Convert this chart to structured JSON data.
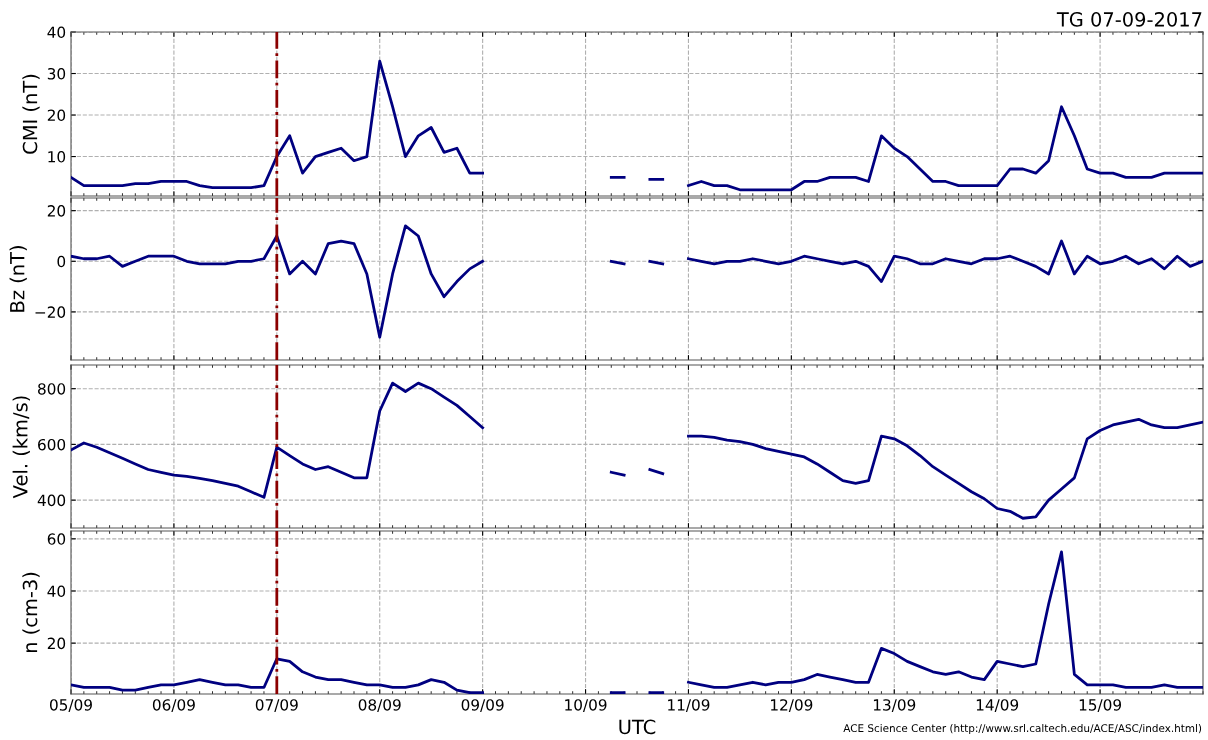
{
  "chart_data": [
    {
      "type": "line",
      "title": "TG 07-09-2017",
      "ylabel": "CMI (nT)",
      "tick_labels": "y",
      "grid": true,
      "legend": false,
      "x": [
        "2017-09-05T00:00",
        "2017-09-05T03:00",
        "2017-09-05T06:00",
        "2017-09-05T09:00",
        "2017-09-05T12:00",
        "2017-09-05T15:00",
        "2017-09-05T18:00",
        "2017-09-05T21:00",
        "2017-09-06T00:00",
        "2017-09-06T03:00",
        "2017-09-06T06:00",
        "2017-09-06T09:00",
        "2017-09-06T12:00",
        "2017-09-06T15:00",
        "2017-09-06T18:00",
        "2017-09-06T21:00",
        "2017-09-07T00:00",
        "2017-09-07T03:00",
        "2017-09-07T06:00",
        "2017-09-07T09:00",
        "2017-09-07T12:00",
        "2017-09-07T15:00",
        "2017-09-07T18:00",
        "2017-09-07T21:00",
        "2017-09-08T00:00",
        "2017-09-08T03:00",
        "2017-09-08T06:00",
        "2017-09-08T09:00",
        "2017-09-08T12:00",
        "2017-09-08T15:00",
        "2017-09-08T18:00",
        "2017-09-08T21:00",
        "2017-09-09T00:00",
        "2017-09-09T03:00",
        "2017-09-09T06:00",
        "2017-09-09T09:00",
        "2017-09-09T12:00",
        "2017-09-09T15:00",
        "2017-09-09T18:00",
        "2017-09-09T21:00",
        "2017-09-10T00:00",
        "2017-09-10T03:00",
        "2017-09-10T06:00",
        "2017-09-10T09:00",
        "2017-09-10T12:00",
        "2017-09-10T15:00",
        "2017-09-10T18:00",
        "2017-09-10T21:00",
        "2017-09-11T00:00",
        "2017-09-11T03:00",
        "2017-09-11T06:00",
        "2017-09-11T09:00",
        "2017-09-11T12:00",
        "2017-09-11T15:00",
        "2017-09-11T18:00",
        "2017-09-11T21:00",
        "2017-09-12T00:00",
        "2017-09-12T03:00",
        "2017-09-12T06:00",
        "2017-09-12T09:00",
        "2017-09-12T12:00",
        "2017-09-12T15:00",
        "2017-09-12T18:00",
        "2017-09-12T21:00",
        "2017-09-13T00:00",
        "2017-09-13T03:00",
        "2017-09-13T06:00",
        "2017-09-13T09:00",
        "2017-09-13T12:00",
        "2017-09-13T15:00",
        "2017-09-13T18:00",
        "2017-09-13T21:00",
        "2017-09-14T00:00",
        "2017-09-14T03:00",
        "2017-09-14T06:00",
        "2017-09-14T09:00",
        "2017-09-14T12:00",
        "2017-09-14T15:00",
        "2017-09-14T18:00",
        "2017-09-14T21:00",
        "2017-09-15T00:00",
        "2017-09-15T03:00",
        "2017-09-15T06:00",
        "2017-09-15T09:00",
        "2017-09-15T12:00",
        "2017-09-15T15:00",
        "2017-09-15T18:00",
        "2017-09-15T21:00",
        "2017-09-16T00:00"
      ],
      "xlim": [
        "2017-09-05",
        "2017-09-16"
      ],
      "ylim": [
        0.5,
        40
      ],
      "yticks": [
        10,
        20,
        30,
        40
      ],
      "ref_lines": [
        {
          "axis": "x",
          "value": "2017-09-07",
          "color": "#8b0000",
          "line_style": "dashdot"
        }
      ],
      "series": [
        {
          "color": "#000080",
          "values": [
            5,
            3,
            3,
            3,
            3,
            3.5,
            3.5,
            4,
            4,
            4,
            3,
            2.5,
            2.5,
            2.5,
            2.5,
            3,
            10,
            15,
            6,
            10,
            11,
            12,
            9,
            10,
            33,
            22,
            10,
            15,
            17,
            11,
            12,
            6,
            6,
            null,
            null,
            null,
            null,
            null,
            null,
            null,
            null,
            null,
            5,
            5,
            null,
            4.5,
            4.5,
            null,
            3,
            4,
            3,
            3,
            2,
            2,
            2,
            2,
            2,
            4,
            4,
            5,
            5,
            5,
            4,
            15,
            12,
            10,
            7,
            4,
            4,
            3,
            3,
            3,
            3,
            7,
            7,
            6,
            9,
            22,
            15,
            7,
            6,
            6,
            5,
            5,
            5,
            6,
            6,
            6,
            6
          ]
        }
      ]
    },
    {
      "type": "line",
      "ylabel": "Bz (nT)",
      "tick_labels": "y",
      "grid": true,
      "legend": false,
      "x": [
        "2017-09-05T00:00",
        "2017-09-05T03:00",
        "2017-09-05T06:00",
        "2017-09-05T09:00",
        "2017-09-05T12:00",
        "2017-09-05T15:00",
        "2017-09-05T18:00",
        "2017-09-05T21:00",
        "2017-09-06T00:00",
        "2017-09-06T03:00",
        "2017-09-06T06:00",
        "2017-09-06T09:00",
        "2017-09-06T12:00",
        "2017-09-06T15:00",
        "2017-09-06T18:00",
        "2017-09-06T21:00",
        "2017-09-07T00:00",
        "2017-09-07T03:00",
        "2017-09-07T06:00",
        "2017-09-07T09:00",
        "2017-09-07T12:00",
        "2017-09-07T15:00",
        "2017-09-07T18:00",
        "2017-09-07T21:00",
        "2017-09-08T00:00",
        "2017-09-08T03:00",
        "2017-09-08T06:00",
        "2017-09-08T09:00",
        "2017-09-08T12:00",
        "2017-09-08T15:00",
        "2017-09-08T18:00",
        "2017-09-08T21:00",
        "2017-09-09T00:00",
        "2017-09-09T03:00",
        "2017-09-09T06:00",
        "2017-09-09T09:00",
        "2017-09-09T12:00",
        "2017-09-09T15:00",
        "2017-09-09T18:00",
        "2017-09-09T21:00",
        "2017-09-10T00:00",
        "2017-09-10T03:00",
        "2017-09-10T06:00",
        "2017-09-10T09:00",
        "2017-09-10T12:00",
        "2017-09-10T15:00",
        "2017-09-10T18:00",
        "2017-09-10T21:00",
        "2017-09-11T00:00",
        "2017-09-11T03:00",
        "2017-09-11T06:00",
        "2017-09-11T09:00",
        "2017-09-11T12:00",
        "2017-09-11T15:00",
        "2017-09-11T18:00",
        "2017-09-11T21:00",
        "2017-09-12T00:00",
        "2017-09-12T03:00",
        "2017-09-12T06:00",
        "2017-09-12T09:00",
        "2017-09-12T12:00",
        "2017-09-12T15:00",
        "2017-09-12T18:00",
        "2017-09-12T21:00",
        "2017-09-13T00:00",
        "2017-09-13T03:00",
        "2017-09-13T06:00",
        "2017-09-13T09:00",
        "2017-09-13T12:00",
        "2017-09-13T15:00",
        "2017-09-13T18:00",
        "2017-09-13T21:00",
        "2017-09-14T00:00",
        "2017-09-14T03:00",
        "2017-09-14T06:00",
        "2017-09-14T09:00",
        "2017-09-14T12:00",
        "2017-09-14T15:00",
        "2017-09-14T18:00",
        "2017-09-14T21:00",
        "2017-09-15T00:00",
        "2017-09-15T03:00",
        "2017-09-15T06:00",
        "2017-09-15T09:00",
        "2017-09-15T12:00",
        "2017-09-15T15:00",
        "2017-09-15T18:00",
        "2017-09-15T21:00",
        "2017-09-16T00:00"
      ],
      "xlim": [
        "2017-09-05",
        "2017-09-16"
      ],
      "ylim": [
        -39,
        25
      ],
      "yticks": [
        {
          "value": -20,
          "label": "−20"
        },
        0,
        20
      ],
      "ref_lines": [
        {
          "axis": "x",
          "value": "2017-09-07",
          "color": "#8b0000",
          "line_style": "dashdot"
        }
      ],
      "series": [
        {
          "color": "#000080",
          "values": [
            2,
            1,
            1,
            2,
            -2,
            0,
            2,
            2,
            2,
            0,
            -1,
            -1,
            -1,
            0,
            0,
            1,
            10,
            -5,
            0,
            -5,
            7,
            8,
            7,
            -5,
            -30,
            -5,
            14,
            10,
            -5,
            -14,
            -8,
            -3,
            0,
            null,
            null,
            null,
            null,
            null,
            null,
            null,
            null,
            null,
            0,
            -1,
            null,
            0,
            -1,
            null,
            1,
            0,
            -1,
            0,
            0,
            1,
            0,
            -1,
            0,
            2,
            1,
            0,
            -1,
            0,
            -2,
            -8,
            2,
            1,
            -1,
            -1,
            1,
            0,
            -1,
            1,
            1,
            2,
            0,
            -2,
            -5,
            8,
            -5,
            2,
            -1,
            0,
            2,
            -1,
            1,
            -3,
            2,
            -2,
            0
          ]
        }
      ]
    },
    {
      "type": "line",
      "ylabel": "Vel. (km/s)",
      "tick_labels": "y",
      "grid": true,
      "legend": false,
      "x": [
        "2017-09-05T00:00",
        "2017-09-05T03:00",
        "2017-09-05T06:00",
        "2017-09-05T09:00",
        "2017-09-05T12:00",
        "2017-09-05T15:00",
        "2017-09-05T18:00",
        "2017-09-05T21:00",
        "2017-09-06T00:00",
        "2017-09-06T03:00",
        "2017-09-06T06:00",
        "2017-09-06T09:00",
        "2017-09-06T12:00",
        "2017-09-06T15:00",
        "2017-09-06T18:00",
        "2017-09-06T21:00",
        "2017-09-07T00:00",
        "2017-09-07T03:00",
        "2017-09-07T06:00",
        "2017-09-07T09:00",
        "2017-09-07T12:00",
        "2017-09-07T15:00",
        "2017-09-07T18:00",
        "2017-09-07T21:00",
        "2017-09-08T00:00",
        "2017-09-08T03:00",
        "2017-09-08T06:00",
        "2017-09-08T09:00",
        "2017-09-08T12:00",
        "2017-09-08T15:00",
        "2017-09-08T18:00",
        "2017-09-08T21:00",
        "2017-09-09T00:00",
        "2017-09-09T03:00",
        "2017-09-09T06:00",
        "2017-09-09T09:00",
        "2017-09-09T12:00",
        "2017-09-09T15:00",
        "2017-09-09T18:00",
        "2017-09-09T21:00",
        "2017-09-10T00:00",
        "2017-09-10T03:00",
        "2017-09-10T06:00",
        "2017-09-10T09:00",
        "2017-09-10T12:00",
        "2017-09-10T15:00",
        "2017-09-10T18:00",
        "2017-09-10T21:00",
        "2017-09-11T00:00",
        "2017-09-11T03:00",
        "2017-09-11T06:00",
        "2017-09-11T09:00",
        "2017-09-11T12:00",
        "2017-09-11T15:00",
        "2017-09-11T18:00",
        "2017-09-11T21:00",
        "2017-09-12T00:00",
        "2017-09-12T03:00",
        "2017-09-12T06:00",
        "2017-09-12T09:00",
        "2017-09-12T12:00",
        "2017-09-12T15:00",
        "2017-09-12T18:00",
        "2017-09-12T21:00",
        "2017-09-13T00:00",
        "2017-09-13T03:00",
        "2017-09-13T06:00",
        "2017-09-13T09:00",
        "2017-09-13T12:00",
        "2017-09-13T15:00",
        "2017-09-13T18:00",
        "2017-09-13T21:00",
        "2017-09-14T00:00",
        "2017-09-14T03:00",
        "2017-09-14T06:00",
        "2017-09-14T09:00",
        "2017-09-14T12:00",
        "2017-09-14T15:00",
        "2017-09-14T18:00",
        "2017-09-14T21:00",
        "2017-09-15T00:00",
        "2017-09-15T03:00",
        "2017-09-15T06:00",
        "2017-09-15T09:00",
        "2017-09-15T12:00",
        "2017-09-15T15:00",
        "2017-09-15T18:00",
        "2017-09-15T21:00",
        "2017-09-16T00:00"
      ],
      "xlim": [
        "2017-09-05",
        "2017-09-16"
      ],
      "ylim": [
        300,
        885
      ],
      "yticks": [
        400,
        600,
        800
      ],
      "ref_lines": [
        {
          "axis": "x",
          "value": "2017-09-07",
          "color": "#8b0000",
          "line_style": "dashdot"
        }
      ],
      "series": [
        {
          "color": "#000080",
          "values": [
            580,
            605,
            590,
            570,
            550,
            530,
            510,
            500,
            490,
            485,
            478,
            470,
            460,
            450,
            430,
            410,
            590,
            560,
            530,
            510,
            520,
            500,
            480,
            480,
            720,
            820,
            790,
            820,
            800,
            770,
            740,
            700,
            660,
            null,
            null,
            null,
            null,
            null,
            null,
            null,
            null,
            null,
            500,
            490,
            null,
            510,
            495,
            null,
            630,
            630,
            625,
            615,
            610,
            600,
            585,
            575,
            565,
            555,
            530,
            500,
            470,
            460,
            470,
            630,
            620,
            595,
            560,
            520,
            490,
            460,
            430,
            405,
            370,
            360,
            335,
            340,
            400,
            440,
            480,
            620,
            650,
            670,
            680,
            690,
            670,
            660,
            660,
            670,
            680
          ]
        }
      ]
    },
    {
      "type": "line",
      "ylabel": "n (cm-3)",
      "xlabel": "UTC",
      "grid": true,
      "legend": false,
      "annotations": [
        "ACE Science Center (http://www.srl.caltech.edu/ACE/ASC/index.html)"
      ],
      "x": [
        "2017-09-05T00:00",
        "2017-09-05T03:00",
        "2017-09-05T06:00",
        "2017-09-05T09:00",
        "2017-09-05T12:00",
        "2017-09-05T15:00",
        "2017-09-05T18:00",
        "2017-09-05T21:00",
        "2017-09-06T00:00",
        "2017-09-06T03:00",
        "2017-09-06T06:00",
        "2017-09-06T09:00",
        "2017-09-06T12:00",
        "2017-09-06T15:00",
        "2017-09-06T18:00",
        "2017-09-06T21:00",
        "2017-09-07T00:00",
        "2017-09-07T03:00",
        "2017-09-07T06:00",
        "2017-09-07T09:00",
        "2017-09-07T12:00",
        "2017-09-07T15:00",
        "2017-09-07T18:00",
        "2017-09-07T21:00",
        "2017-09-08T00:00",
        "2017-09-08T03:00",
        "2017-09-08T06:00",
        "2017-09-08T09:00",
        "2017-09-08T12:00",
        "2017-09-08T15:00",
        "2017-09-08T18:00",
        "2017-09-08T21:00",
        "2017-09-09T00:00",
        "2017-09-09T03:00",
        "2017-09-09T06:00",
        "2017-09-09T09:00",
        "2017-09-09T12:00",
        "2017-09-09T15:00",
        "2017-09-09T18:00",
        "2017-09-09T21:00",
        "2017-09-10T00:00",
        "2017-09-10T03:00",
        "2017-09-10T06:00",
        "2017-09-10T09:00",
        "2017-09-10T12:00",
        "2017-09-10T15:00",
        "2017-09-10T18:00",
        "2017-09-10T21:00",
        "2017-09-11T00:00",
        "2017-09-11T03:00",
        "2017-09-11T06:00",
        "2017-09-11T09:00",
        "2017-09-11T12:00",
        "2017-09-11T15:00",
        "2017-09-11T18:00",
        "2017-09-11T21:00",
        "2017-09-12T00:00",
        "2017-09-12T03:00",
        "2017-09-12T06:00",
        "2017-09-12T09:00",
        "2017-09-12T12:00",
        "2017-09-12T15:00",
        "2017-09-12T18:00",
        "2017-09-12T21:00",
        "2017-09-13T00:00",
        "2017-09-13T03:00",
        "2017-09-13T06:00",
        "2017-09-13T09:00",
        "2017-09-13T12:00",
        "2017-09-13T15:00",
        "2017-09-13T18:00",
        "2017-09-13T21:00",
        "2017-09-14T00:00",
        "2017-09-14T03:00",
        "2017-09-14T06:00",
        "2017-09-14T09:00",
        "2017-09-14T12:00",
        "2017-09-14T15:00",
        "2017-09-14T18:00",
        "2017-09-14T21:00",
        "2017-09-15T00:00",
        "2017-09-15T03:00",
        "2017-09-15T06:00",
        "2017-09-15T09:00",
        "2017-09-15T12:00",
        "2017-09-15T15:00",
        "2017-09-15T18:00",
        "2017-09-15T21:00",
        "2017-09-16T00:00"
      ],
      "xlim": [
        "2017-09-05",
        "2017-09-16"
      ],
      "xticks": [
        {
          "value": "2017-09-05",
          "label": "05/09"
        },
        {
          "value": "2017-09-06",
          "label": "06/09"
        },
        {
          "value": "2017-09-07",
          "label": "07/09"
        },
        {
          "value": "2017-09-08",
          "label": "08/09"
        },
        {
          "value": "2017-09-09",
          "label": "09/09"
        },
        {
          "value": "2017-09-10",
          "label": "10/09"
        },
        {
          "value": "2017-09-11",
          "label": "11/09"
        },
        {
          "value": "2017-09-12",
          "label": "12/09"
        },
        {
          "value": "2017-09-13",
          "label": "13/09"
        },
        {
          "value": "2017-09-14",
          "label": "14/09"
        },
        {
          "value": "2017-09-15",
          "label": "15/09"
        }
      ],
      "ylim": [
        0.5,
        63
      ],
      "yticks": [
        20,
        40,
        60
      ],
      "ref_lines": [
        {
          "axis": "x",
          "value": "2017-09-07",
          "color": "#8b0000",
          "line_style": "dashdot"
        }
      ],
      "series": [
        {
          "color": "#000080",
          "values": [
            4,
            3,
            3,
            3,
            2,
            2,
            3,
            4,
            4,
            5,
            6,
            5,
            4,
            4,
            3,
            3,
            14,
            13,
            9,
            7,
            6,
            6,
            5,
            4,
            4,
            3,
            3,
            4,
            6,
            5,
            2,
            1,
            1,
            null,
            null,
            null,
            null,
            null,
            null,
            null,
            null,
            null,
            1,
            1,
            null,
            1,
            1,
            null,
            5,
            4,
            3,
            3,
            4,
            5,
            4,
            5,
            5,
            6,
            8,
            7,
            6,
            5,
            5,
            18,
            16,
            13,
            11,
            9,
            8,
            9,
            7,
            6,
            13,
            12,
            11,
            12,
            35,
            55,
            8,
            4,
            4,
            4,
            3,
            3,
            3,
            4,
            3,
            3,
            3
          ]
        }
      ]
    }
  ]
}
